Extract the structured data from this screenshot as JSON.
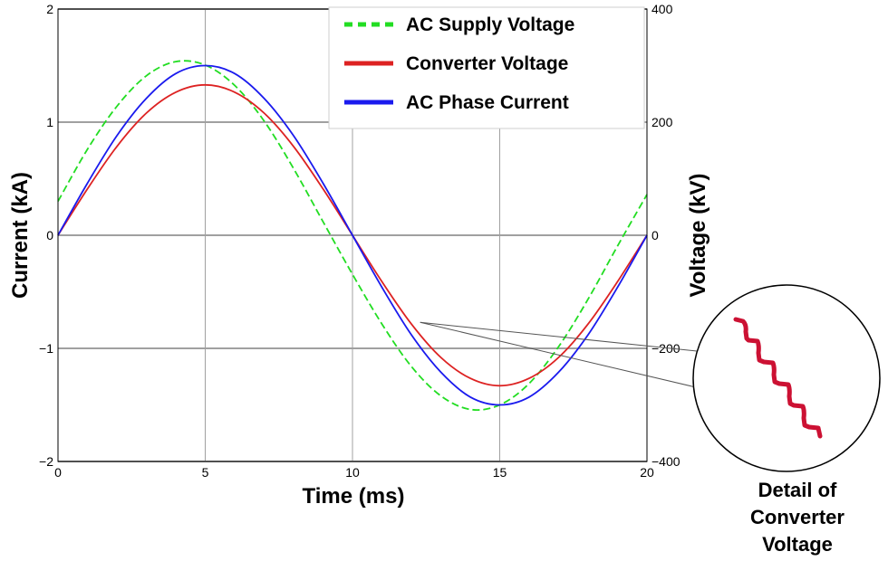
{
  "chart_data": {
    "type": "line",
    "title": "",
    "xlabel": "Time (ms)",
    "ylabel_left": "Current (kA)",
    "ylabel_right": "Voltage (kV)",
    "xlim": [
      0,
      20
    ],
    "ylim_left": [
      -2,
      2
    ],
    "ylim_right": [
      -400,
      400
    ],
    "x_ticks": [
      "0",
      "5",
      "10",
      "15",
      "20"
    ],
    "y_ticks_left": [
      "−2",
      "−1",
      "0",
      "1",
      "2"
    ],
    "y_ticks_right": [
      "−400",
      "−200",
      "0",
      "200",
      "400"
    ],
    "grid": true,
    "legend_position": "top-right",
    "series": [
      {
        "name": "AC Supply Voltage",
        "axis": "right",
        "color": "#22dd22",
        "style": "dashed",
        "x": [
          0,
          1,
          2,
          3,
          4,
          5,
          6,
          7,
          8,
          9,
          10,
          11,
          12,
          13,
          14,
          15,
          16,
          17,
          18,
          19,
          20
        ],
        "y": [
          60,
          152,
          228,
          282,
          307,
          301,
          265,
          202,
          118,
          24,
          -69,
          -157,
          -232,
          -284,
          -308,
          -300,
          -262,
          -197,
          -113,
          -19,
          72
        ]
      },
      {
        "name": "Converter Voltage",
        "axis": "right",
        "color": "#dd2222",
        "style": "solid",
        "x": [
          0,
          1,
          2,
          3,
          4,
          5,
          6,
          7,
          8,
          9,
          10,
          11,
          12,
          13,
          14,
          15,
          16,
          17,
          18,
          19,
          20
        ],
        "y": [
          0,
          82,
          157,
          216,
          253,
          266,
          253,
          216,
          157,
          82,
          0,
          -82,
          -157,
          -216,
          -253,
          -266,
          -253,
          -216,
          -157,
          -82,
          0
        ]
      },
      {
        "name": "AC Phase Current",
        "axis": "left",
        "color": "#1a1aee",
        "style": "solid",
        "x": [
          0,
          1,
          2,
          3,
          4,
          5,
          6,
          7,
          8,
          9,
          10,
          11,
          12,
          13,
          14,
          15,
          16,
          17,
          18,
          19,
          20
        ],
        "y": [
          0,
          0.46,
          0.88,
          1.21,
          1.43,
          1.5,
          1.43,
          1.21,
          0.88,
          0.46,
          0,
          -0.46,
          -0.88,
          -1.21,
          -1.43,
          -1.5,
          -1.43,
          -1.21,
          -0.88,
          -0.46,
          0
        ]
      }
    ],
    "inset": {
      "label_lines": [
        "Detail of",
        "Converter",
        "Voltage"
      ],
      "color": "#cc1133",
      "points_to": {
        "x": 12.3,
        "y_left": -0.77
      }
    }
  }
}
